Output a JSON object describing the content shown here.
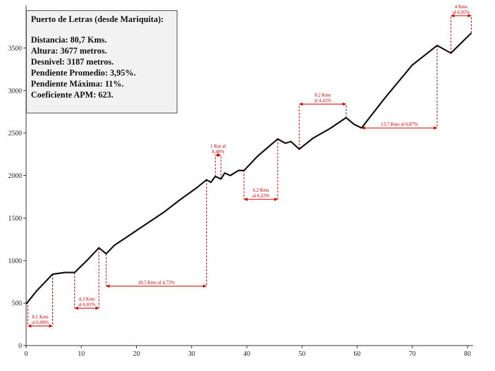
{
  "chart_data": {
    "type": "line",
    "title": "Puerto de Letras (desde Mariquita):",
    "info_lines": [
      "Distancia: 80,7 Kms.",
      "Altura: 3677 metros.",
      "Desnivel: 3187 metros.",
      "Pendiente Promedio: 3,95%.",
      "Pendiente Máxima: 11%.",
      "Coeficiente APM: 623."
    ],
    "xlim": [
      0,
      81
    ],
    "ylim": [
      0,
      4000
    ],
    "xticks": [
      0,
      10,
      20,
      30,
      40,
      50,
      60,
      70,
      80
    ],
    "yticks": [
      0,
      500,
      1000,
      1500,
      2000,
      2500,
      3000,
      3500
    ],
    "grid": false,
    "series": [
      {
        "x": [
          0,
          2,
          4.8,
          7,
          8.8,
          11,
          13.2,
          14.5,
          16,
          19,
          22,
          25,
          28,
          31,
          32.7,
          33.5,
          34.3,
          35.3,
          36,
          37,
          38.5,
          39.5,
          42,
          45.6,
          47,
          48,
          49.5,
          52,
          55,
          58,
          59.5,
          60.8,
          65,
          70,
          74.5,
          77,
          80.7
        ],
        "y": [
          490,
          650,
          840,
          860,
          860,
          1000,
          1150,
          1080,
          1180,
          1310,
          1440,
          1570,
          1720,
          1860,
          1950,
          1920,
          1990,
          1960,
          2030,
          2000,
          2060,
          2060,
          2230,
          2430,
          2380,
          2400,
          2310,
          2440,
          2550,
          2680,
          2600,
          2560,
          2910,
          3300,
          3530,
          3440,
          3677
        ]
      }
    ],
    "annotations": [
      {
        "text": [
          "8,1 Kms",
          "al 6,88%"
        ],
        "x1": 0.3,
        "x2": 4.8,
        "y": 230
      },
      {
        "text": [
          "4,3 Kms",
          "al 6,81%"
        ],
        "x1": 8.8,
        "x2": 13.2,
        "y": 440
      },
      {
        "text": [
          "18,5 Kms al 4,73%"
        ],
        "x1": 14.5,
        "x2": 32.7,
        "y": 700
      },
      {
        "text": [
          "1 Km al",
          "8,40%"
        ],
        "x1": 34.3,
        "x2": 35.3,
        "y": 2240
      },
      {
        "text": [
          "6,2 Kms",
          "al 6,22%"
        ],
        "x1": 39.5,
        "x2": 45.6,
        "y": 1720
      },
      {
        "text": [
          "8,2 Kms",
          "al 4,41%"
        ],
        "x1": 49.5,
        "x2": 58,
        "y": 2840
      },
      {
        "text": [
          "13,7 Kms al 6,87%"
        ],
        "x1": 60.8,
        "x2": 74.5,
        "y": 2560
      },
      {
        "text": [
          "4 Kms",
          "al 6,95%"
        ],
        "x1": 77,
        "x2": 80.7,
        "y": 3880
      }
    ]
  }
}
